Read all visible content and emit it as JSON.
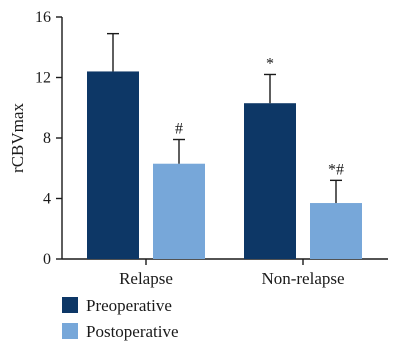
{
  "chart_data": {
    "type": "bar",
    "title": "",
    "xlabel": "",
    "ylabel": "rCBVmax",
    "ylim": [
      0,
      16
    ],
    "yticks": [
      0,
      4,
      8,
      12,
      16
    ],
    "categories": [
      "Relapse",
      "Non-relapse"
    ],
    "series": [
      {
        "name": "Preoperative",
        "color": "#0d3766",
        "values": [
          12.4,
          10.3
        ],
        "error": [
          2.5,
          1.9
        ],
        "annotations": [
          "",
          "*"
        ]
      },
      {
        "name": "Postoperative",
        "color": "#77a7d9",
        "values": [
          6.3,
          3.7
        ],
        "error": [
          1.6,
          1.5
        ],
        "annotations": [
          "#",
          "*#"
        ]
      }
    ],
    "grid": false,
    "legend": "bottom-left"
  }
}
